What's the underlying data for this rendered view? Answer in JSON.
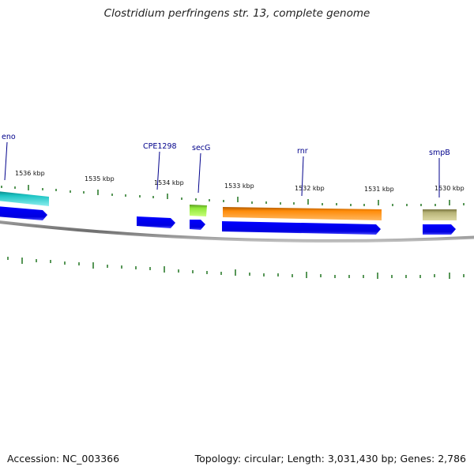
{
  "title": "Clostridium perfringens str. 13, complete genome",
  "accession_label": "Accession:",
  "accession": "NC_003366",
  "topology_text": "Topology: circular; Length: 3,031,430 bp; Genes: 2,786",
  "colors": {
    "backbone": "#8c8c8c",
    "tick": "#2e7d2e",
    "cds": "#0a0ae6",
    "label": "#00008b",
    "enolase": "#1cc4c4",
    "secG": "#8fe83a",
    "rnr": "#ff8c0a",
    "smpB": "#b8b478"
  },
  "ticks": [
    {
      "label": "1536 kbp"
    },
    {
      "label": "1535 kbp"
    },
    {
      "label": "1534 kbp"
    },
    {
      "label": "1533 kbp"
    },
    {
      "label": "1532 kbp"
    },
    {
      "label": "1531 kbp"
    },
    {
      "label": "1530 kbp"
    }
  ],
  "gene_labels": [
    {
      "text": "eno"
    },
    {
      "text": "CPE1298"
    },
    {
      "text": "secG"
    },
    {
      "text": "rnr"
    },
    {
      "text": "smpB"
    }
  ],
  "features": [
    {
      "name": "eno",
      "color_key": "enolase"
    },
    {
      "name": "secG",
      "color_key": "secG"
    },
    {
      "name": "rnr",
      "color_key": "rnr"
    },
    {
      "name": "smpB",
      "color_key": "smpB"
    }
  ]
}
